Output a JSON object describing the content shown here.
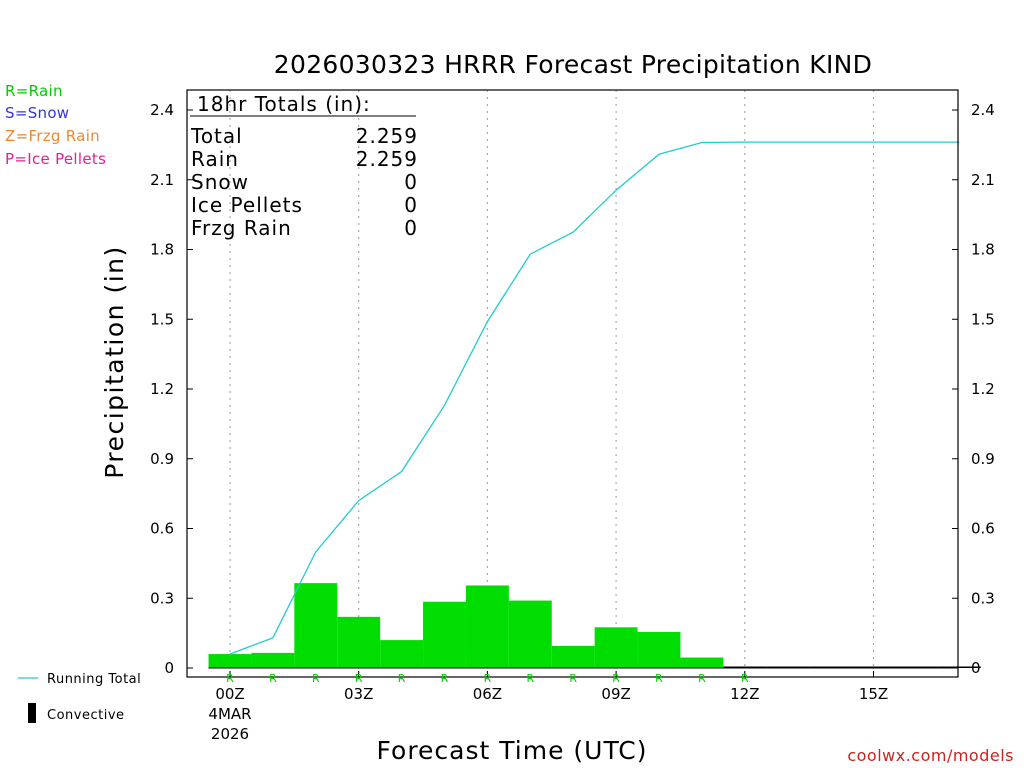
{
  "title": "2026030323 HRRR Forecast Precipitation KIND",
  "type_legend": [
    {
      "label": "R=Rain",
      "color": "#00cc00"
    },
    {
      "label": "S=Snow",
      "color": "#3333dd"
    },
    {
      "label": "Z=Frzg Rain",
      "color": "#ee8833"
    },
    {
      "label": "P=Ice Pellets",
      "color": "#dd2299"
    }
  ],
  "totals": {
    "heading": "18hr Totals (in):",
    "rows": [
      {
        "label": "Total",
        "value": "2.259"
      },
      {
        "label": "Rain",
        "value": "2.259"
      },
      {
        "label": "Snow",
        "value": "0"
      },
      {
        "label": "Ice Pellets",
        "value": "0"
      },
      {
        "label": "Frzg Rain",
        "value": "0"
      }
    ]
  },
  "bottom_legend": {
    "running_total": "Running Total",
    "convective": "Convective"
  },
  "date_label": [
    "4MAR",
    "2026"
  ],
  "watermark": "coolwx.com/models",
  "colors": {
    "rain_bar": "#00dd00",
    "running_total": "#22cccc",
    "axis": "#000000",
    "grid": "#aaaaaa"
  },
  "chart_data": {
    "type": "bar",
    "xlabel": "Forecast Time (UTC)",
    "ylabel": "Precipitation (in)",
    "ylim": [
      0,
      2.4
    ],
    "xlim": [
      -1,
      17
    ],
    "yticks": [
      0,
      0.3,
      0.6,
      0.9,
      1.2,
      1.5,
      1.8,
      2.1,
      2.4
    ],
    "ytick_labels": [
      "0",
      "0.3",
      "0.6",
      "0.9",
      "1.2",
      "1.5",
      "1.8",
      "2.1",
      "2.4"
    ],
    "xticks": [
      0,
      3,
      6,
      9,
      12,
      15
    ],
    "xtick_labels": [
      "00Z",
      "03Z",
      "06Z",
      "09Z",
      "12Z",
      "15Z"
    ],
    "grid": true,
    "hourly": {
      "hours": [
        0,
        1,
        2,
        3,
        4,
        5,
        6,
        7,
        8,
        9,
        10,
        11,
        12,
        13,
        14,
        15,
        16,
        17
      ],
      "values": [
        0.06,
        0.065,
        0.365,
        0.22,
        0.12,
        0.285,
        0.355,
        0.29,
        0.095,
        0.175,
        0.155,
        0.045,
        0.003,
        0.003,
        0.003,
        0.003,
        0.003,
        0.003
      ],
      "type_codes": [
        "R",
        "R",
        "R",
        "R",
        "R",
        "R",
        "R",
        "R",
        "R",
        "R",
        "R",
        "R",
        "R",
        "",
        "",
        "",
        "",
        ""
      ]
    },
    "running_total": {
      "hours": [
        0,
        1,
        2,
        3,
        4,
        5,
        6,
        7,
        8,
        9,
        10,
        11,
        12,
        13,
        14,
        15,
        16,
        17
      ],
      "values": [
        0.06,
        0.13,
        0.5,
        0.72,
        0.845,
        1.13,
        1.49,
        1.78,
        1.875,
        2.055,
        2.21,
        2.26,
        2.262,
        2.262,
        2.262,
        2.262,
        2.262,
        2.262
      ]
    },
    "legend": [
      "Running Total",
      "Convective"
    ]
  }
}
